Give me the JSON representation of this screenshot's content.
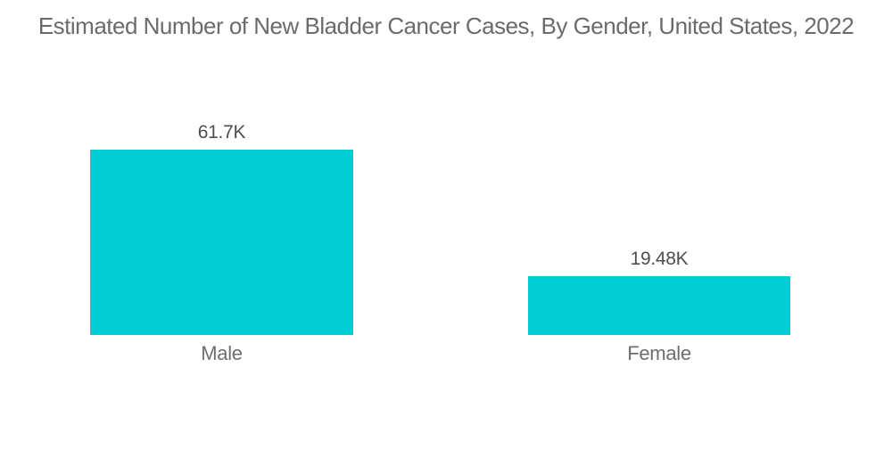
{
  "title": "Estimated Number of New Bladder Cancer Cases, By Gender, United States, 2022",
  "chart_data": {
    "type": "bar",
    "title": "Estimated Number of New Bladder Cancer Cases, By Gender, United States, 2022",
    "categories": [
      "Male",
      "Female"
    ],
    "values": [
      61700,
      19480
    ],
    "value_labels": [
      "61.7K",
      "19.48K"
    ],
    "xlabel": "",
    "ylabel": "",
    "ylim": [
      0,
      65000
    ],
    "grid": false,
    "legend": false,
    "orientation": "vertical",
    "bar_color": "#00CDD4",
    "title_color": "#6b6b6b",
    "value_label_color": "#4f4f4f",
    "category_label_color": "#6e6e6e",
    "background_color": "#ffffff"
  }
}
